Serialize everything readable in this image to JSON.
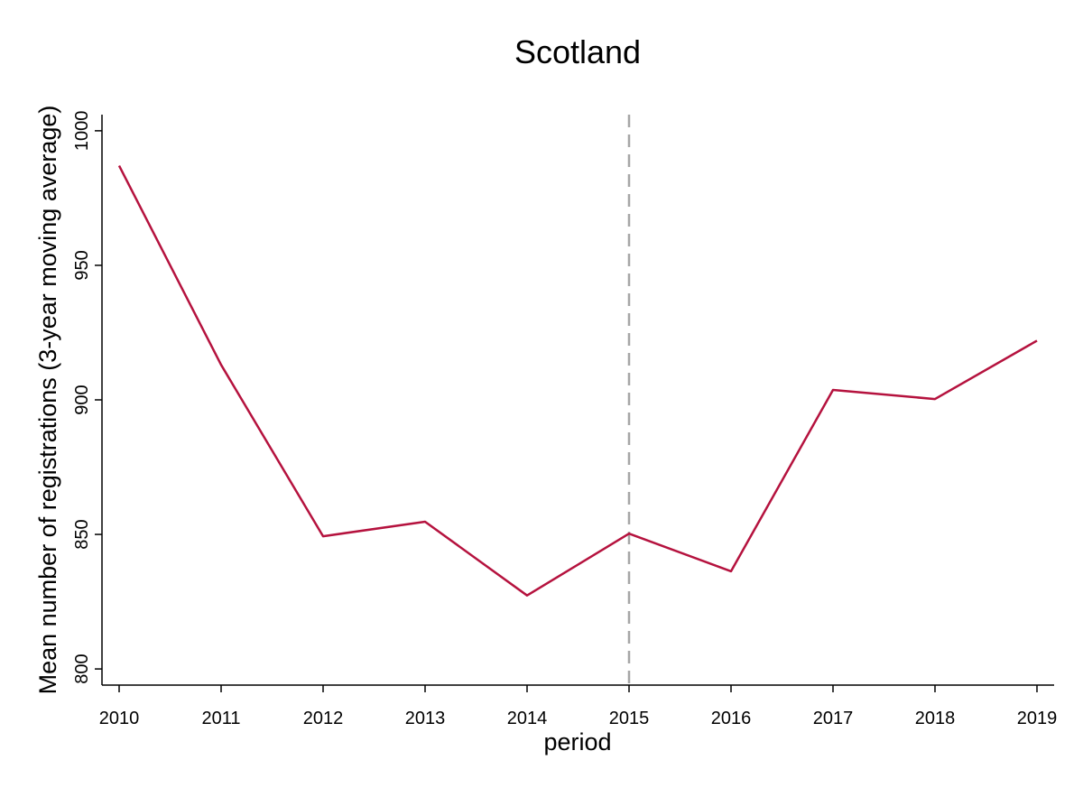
{
  "chart_data": {
    "type": "line",
    "title": "Scotland",
    "xlabel": "period",
    "ylabel": "Mean number of registrations (3-year moving average)",
    "x": [
      2010,
      2011,
      2012,
      2013,
      2014,
      2015,
      2016,
      2017,
      2018,
      2019
    ],
    "x_ticks": [
      "2010",
      "2011",
      "2012",
      "2013",
      "2014",
      "2015",
      "2016",
      "2017",
      "2018",
      "2019"
    ],
    "y_ticks": [
      "800",
      "850",
      "900",
      "950",
      "1000"
    ],
    "xlim": [
      2010,
      2019
    ],
    "ylim": [
      794,
      1006
    ],
    "series": [
      {
        "values": [
          987,
          913,
          849.3,
          854.7,
          827.3,
          850.3,
          836.3,
          903.7,
          900.3,
          922
        ],
        "color": "#b5123e"
      }
    ],
    "annotations": [
      {
        "type": "vertical-dashed-line",
        "x": 2015,
        "color": "#a6a6a6"
      }
    ],
    "grid": false,
    "legend": "none"
  }
}
